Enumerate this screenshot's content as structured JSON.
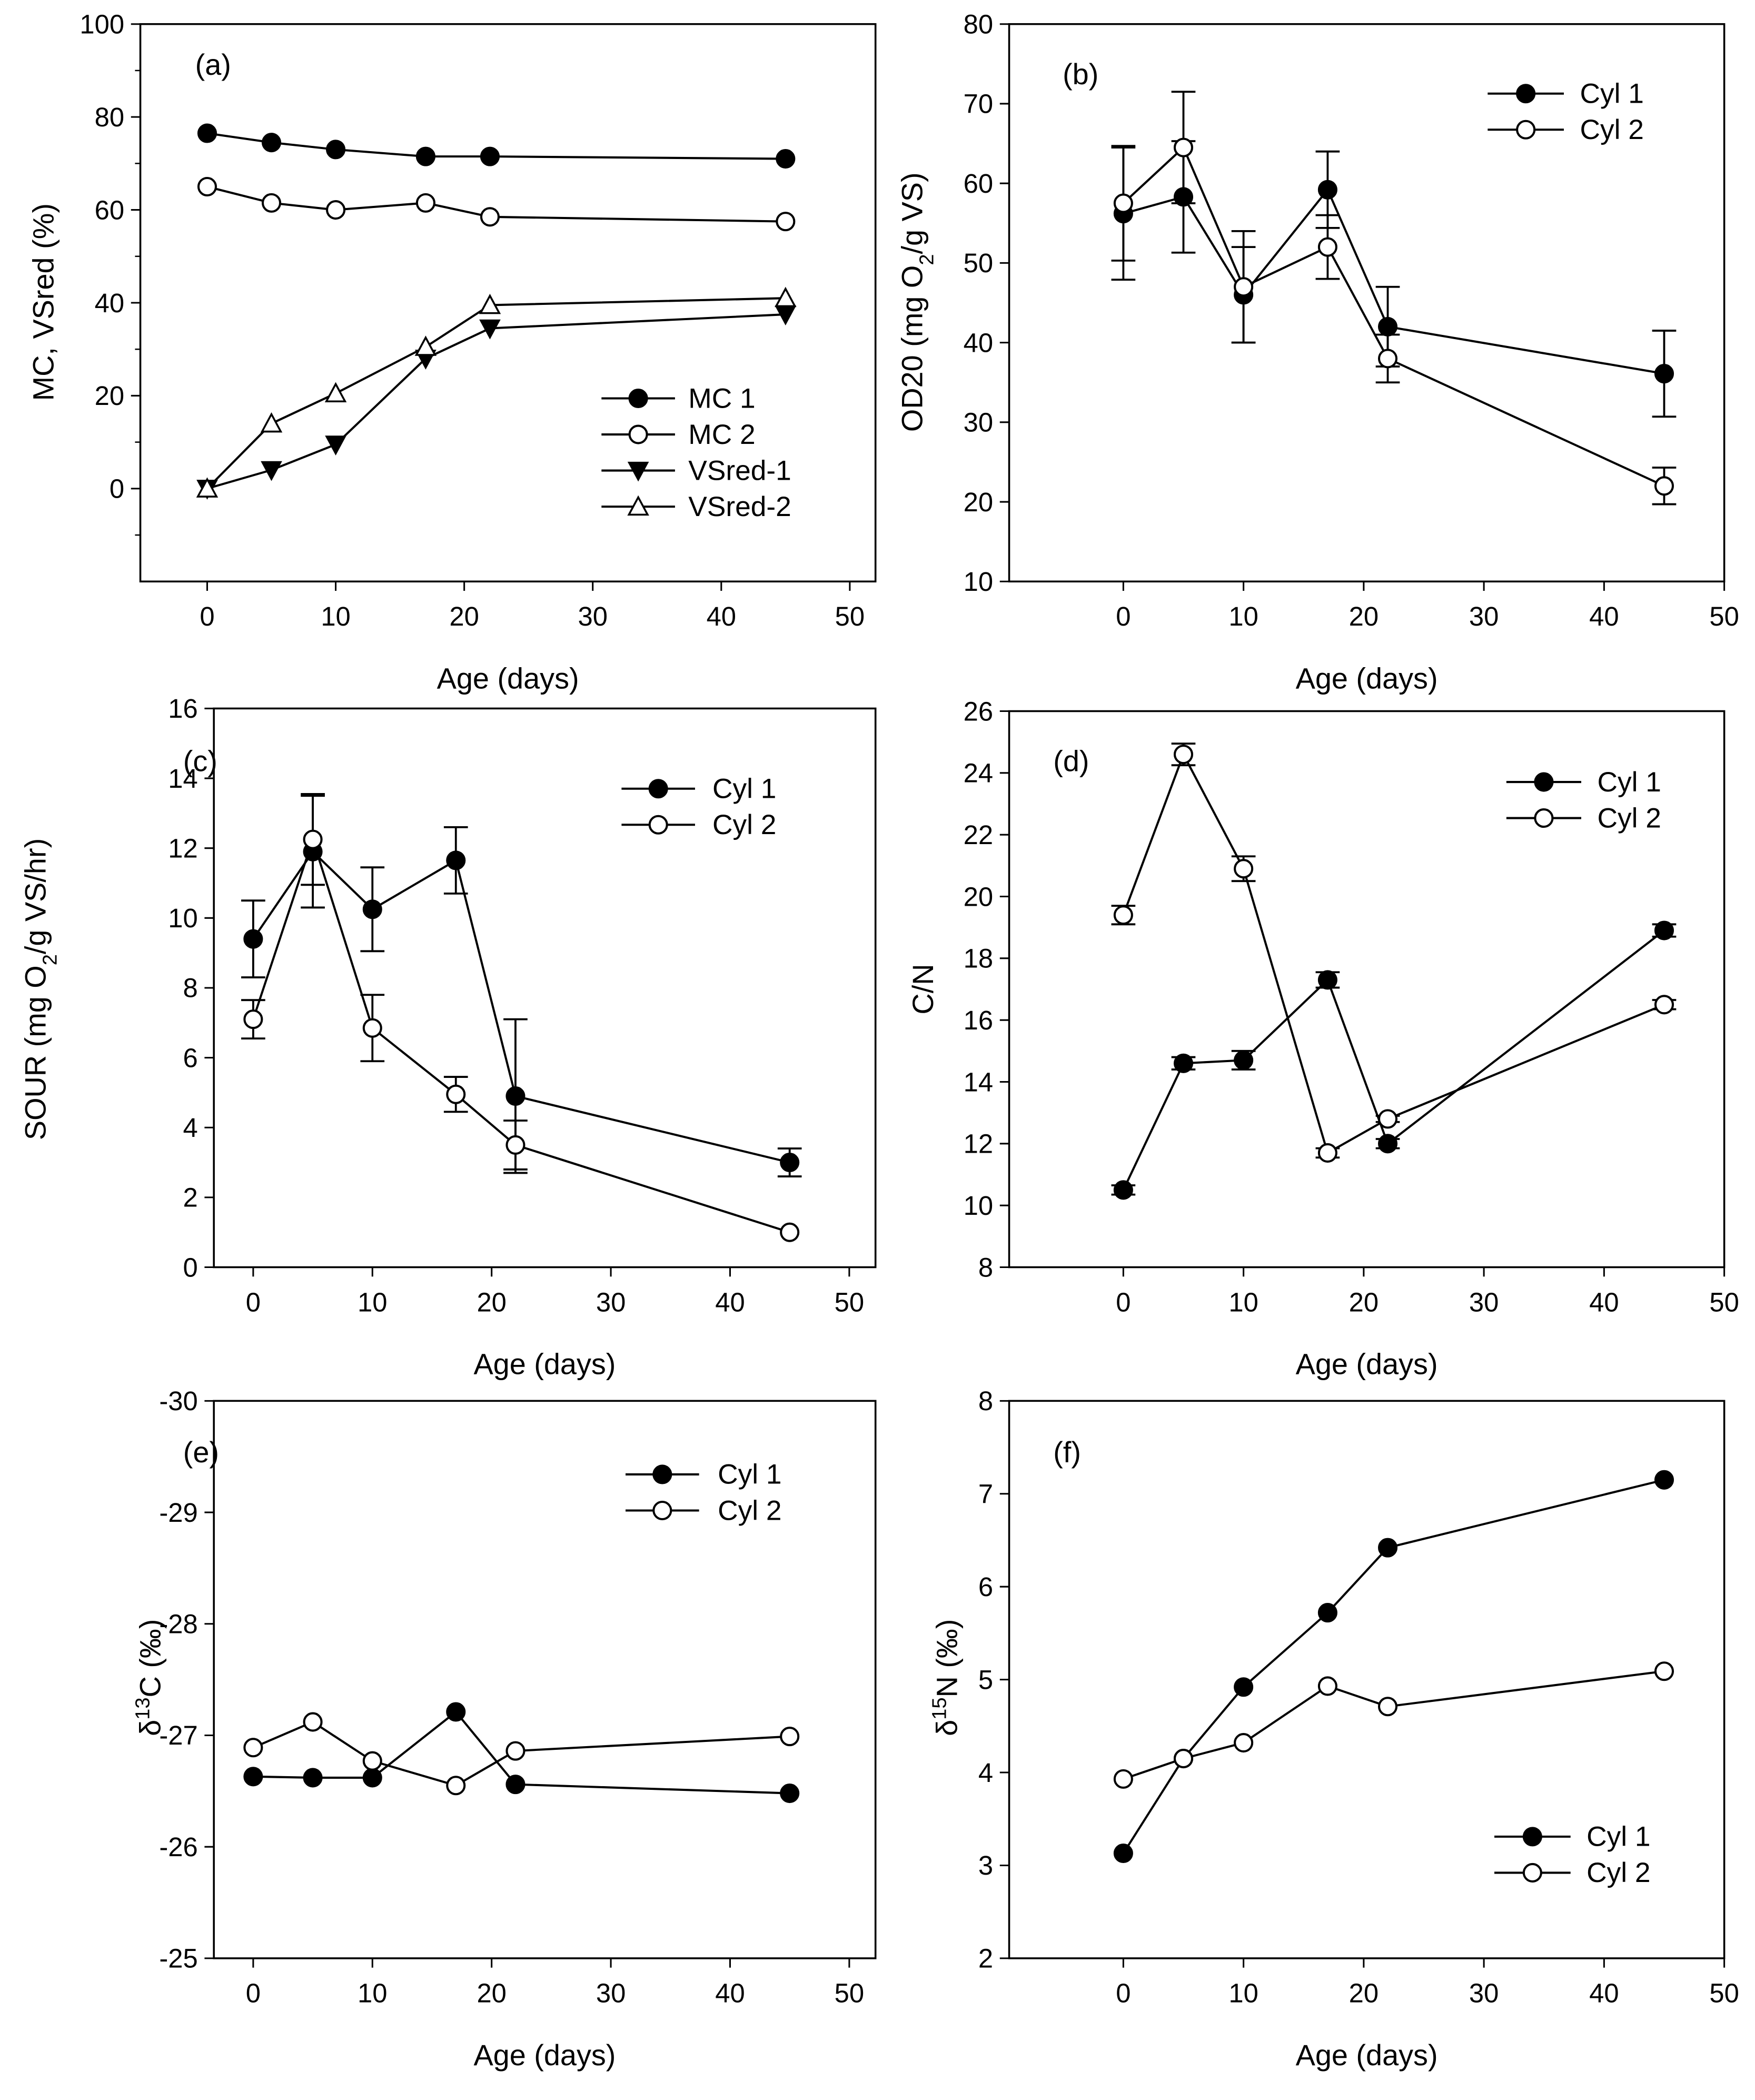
{
  "chart_data": [
    {
      "id": "a",
      "type": "line",
      "panel_label": "(a)",
      "xlabel": "Age (days)",
      "ylabel": [
        {
          "t": "MC, VSred (%)"
        }
      ],
      "xlim": [
        -5.2,
        52
      ],
      "ylim": [
        -20,
        100
      ],
      "yinvert": false,
      "xticks": [
        0,
        10,
        20,
        30,
        40,
        50
      ],
      "yticks": [
        0,
        20,
        40,
        60,
        80,
        100
      ],
      "yminor": [
        -10,
        10,
        30,
        50,
        70,
        90
      ],
      "x": [
        0,
        5,
        10,
        17,
        22,
        45
      ],
      "legend_position": "bottom-right",
      "series": [
        {
          "name": "MC 1",
          "marker": "circle-filled",
          "values": [
            76.5,
            74.5,
            73,
            71.5,
            71.5,
            71
          ]
        },
        {
          "name": "MC 2",
          "marker": "circle-open",
          "values": [
            65,
            61.5,
            60,
            61.5,
            58.5,
            57.5
          ]
        },
        {
          "name": "VSred-1",
          "marker": "triangle-down-filled",
          "values": [
            0,
            4,
            9.5,
            28,
            34.5,
            37.5
          ]
        },
        {
          "name": "VSred-2",
          "marker": "triangle-up-open",
          "values": [
            0,
            14,
            20.5,
            30.5,
            39.5,
            41
          ]
        }
      ]
    },
    {
      "id": "b",
      "type": "line",
      "panel_label": "(b)",
      "xlabel": "Age (days)",
      "ylabel": [
        {
          "t": "OD20 (mg O"
        },
        {
          "t": "2",
          "sub": true
        },
        {
          "t": "/g VS)"
        }
      ],
      "xlim": [
        -9.5,
        50
      ],
      "ylim": [
        10,
        80
      ],
      "yinvert": false,
      "xticks": [
        0,
        10,
        20,
        30,
        40,
        50
      ],
      "yticks": [
        10,
        20,
        30,
        40,
        50,
        60,
        70,
        80
      ],
      "x": [
        0,
        5,
        10,
        17,
        22,
        45
      ],
      "legend_position": "top-right",
      "series": [
        {
          "name": "Cyl 1",
          "marker": "circle-filled",
          "values": [
            56.2,
            58.3,
            46,
            59.2,
            42,
            36.1
          ],
          "errors": [
            8.3,
            7,
            6,
            4.8,
            5,
            5.4
          ]
        },
        {
          "name": "Cyl 2",
          "marker": "circle-open",
          "values": [
            57.5,
            64.5,
            47,
            52,
            38,
            22
          ],
          "errors": [
            7.2,
            7,
            7,
            4,
            3,
            2.3
          ]
        }
      ]
    },
    {
      "id": "c",
      "type": "line",
      "panel_label": "(c)",
      "xlabel": "Age (days)",
      "ylabel": [
        {
          "t": "SOUR (mg O"
        },
        {
          "t": "2",
          "sub": true
        },
        {
          "t": "/g VS/hr)"
        }
      ],
      "xlim": [
        -3.3,
        52.2
      ],
      "ylim": [
        0,
        16
      ],
      "yinvert": false,
      "xticks": [
        0,
        10,
        20,
        30,
        40,
        50
      ],
      "yticks": [
        0,
        2,
        4,
        6,
        8,
        10,
        12,
        14,
        16
      ],
      "x": [
        0,
        5,
        10,
        17,
        22,
        45
      ],
      "legend_position": "top-right",
      "series": [
        {
          "name": "Cyl 1",
          "marker": "circle-filled",
          "values": [
            9.4,
            11.9,
            10.25,
            11.65,
            4.9,
            3.0
          ],
          "errors": [
            1.1,
            1.6,
            1.2,
            0.95,
            2.2,
            0.4
          ]
        },
        {
          "name": "Cyl 2",
          "marker": "circle-open",
          "values": [
            7.1,
            12.25,
            6.85,
            4.95,
            3.5,
            1.0
          ],
          "errors": [
            0.55,
            1.3,
            0.95,
            0.5,
            0.7,
            0
          ]
        }
      ]
    },
    {
      "id": "d",
      "type": "line",
      "panel_label": "(d)",
      "xlabel": "Age (days)",
      "ylabel": [
        {
          "t": "C/N"
        }
      ],
      "xlim": [
        -9.5,
        50
      ],
      "ylim": [
        8,
        26
      ],
      "yinvert": false,
      "xticks": [
        0,
        10,
        20,
        30,
        40,
        50
      ],
      "yticks": [
        8,
        10,
        12,
        14,
        16,
        18,
        20,
        22,
        24,
        26
      ],
      "x": [
        0,
        5,
        10,
        17,
        22,
        45
      ],
      "legend_position": "top-right",
      "series": [
        {
          "name": "Cyl 1",
          "marker": "circle-filled",
          "values": [
            10.5,
            14.6,
            14.7,
            17.3,
            12.0,
            18.9
          ],
          "errors": [
            0.15,
            0.2,
            0.3,
            0.25,
            0.15,
            0.2
          ]
        },
        {
          "name": "Cyl 2",
          "marker": "circle-open",
          "values": [
            19.4,
            24.6,
            20.9,
            11.7,
            12.8,
            16.5
          ],
          "errors": [
            0.3,
            0.35,
            0.4,
            0.15,
            0.1,
            0.15
          ]
        }
      ]
    },
    {
      "id": "e",
      "type": "line",
      "panel_label": "(e)",
      "xlabel": "Age (days)",
      "ylabel": [
        {
          "t": "δ"
        },
        {
          "t": "13",
          "sup": true
        },
        {
          "t": "C (‰)"
        }
      ],
      "xlim": [
        -3.3,
        52.2
      ],
      "ylim": [
        -30,
        -25
      ],
      "yinvert": true,
      "xticks": [
        0,
        10,
        20,
        30,
        40,
        50
      ],
      "yticks": [
        -30,
        -29,
        -28,
        -27,
        -26,
        -25
      ],
      "x": [
        0,
        5,
        10,
        17,
        22,
        45
      ],
      "legend_position": "top-right",
      "series": [
        {
          "name": "Cyl 1",
          "marker": "circle-filled",
          "values": [
            -26.63,
            -26.62,
            -26.62,
            -27.21,
            -26.56,
            -26.48
          ]
        },
        {
          "name": "Cyl 2",
          "marker": "circle-open",
          "values": [
            -26.89,
            -27.12,
            -26.77,
            -26.55,
            -26.86,
            -26.99
          ]
        }
      ]
    },
    {
      "id": "f",
      "type": "line",
      "panel_label": "(f)",
      "xlabel": "Age (days)",
      "ylabel": [
        {
          "t": "δ"
        },
        {
          "t": "15",
          "sup": true
        },
        {
          "t": "N (‰)"
        }
      ],
      "xlim": [
        -9.5,
        50
      ],
      "ylim": [
        2,
        8
      ],
      "yinvert": false,
      "xticks": [
        0,
        10,
        20,
        30,
        40,
        50
      ],
      "yticks": [
        2,
        3,
        4,
        5,
        6,
        7,
        8
      ],
      "x": [
        0,
        5,
        10,
        17,
        22,
        45
      ],
      "legend_position": "bottom-right",
      "series": [
        {
          "name": "Cyl 1",
          "marker": "circle-filled",
          "values": [
            3.13,
            4.15,
            4.92,
            5.72,
            6.42,
            7.15
          ]
        },
        {
          "name": "Cyl 2",
          "marker": "circle-open",
          "values": [
            3.93,
            4.15,
            4.32,
            4.93,
            4.71,
            5.09
          ]
        }
      ]
    }
  ]
}
